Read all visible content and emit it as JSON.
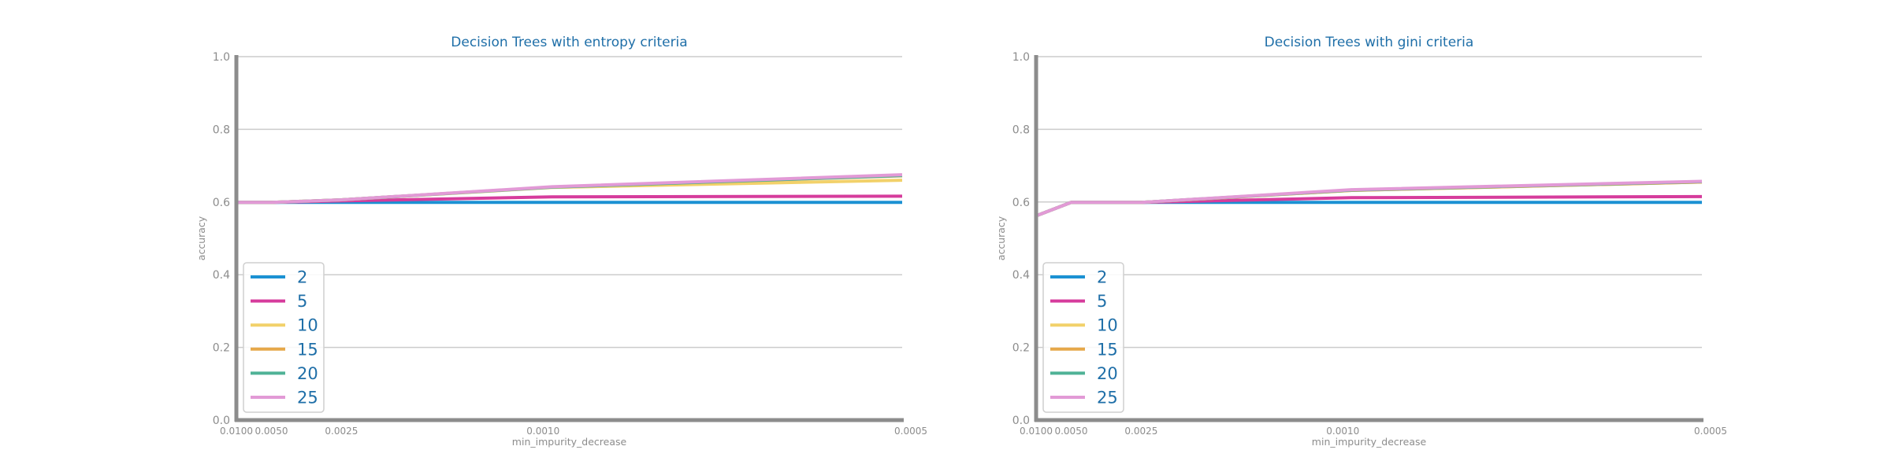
{
  "chart_data": [
    {
      "type": "line",
      "title": "Decision Trees with entropy criteria",
      "xlabel": "min_impurity_decrease",
      "ylabel": "accuracy",
      "x": [
        0.01,
        0.005,
        0.0025,
        0.001,
        0.0005
      ],
      "x_tick_labels": [
        "0.0100",
        "0.0050",
        "0.0025",
        "0.0010",
        "0.0005"
      ],
      "ylim": [
        0.0,
        1.0
      ],
      "y_ticks": [
        0.0,
        0.2,
        0.4,
        0.6,
        0.8,
        1.0
      ],
      "y_tick_labels": [
        "0.0",
        "0.2",
        "0.4",
        "0.6",
        "0.8",
        "1.0"
      ],
      "grid": true,
      "legend_position": "lower-left",
      "series": [
        {
          "name": "2",
          "color": "#1b91d3",
          "values": [
            0.599,
            0.599,
            0.599,
            0.599,
            0.599
          ]
        },
        {
          "name": "5",
          "color": "#d63c9c",
          "values": [
            0.599,
            0.599,
            0.603,
            0.614,
            0.616
          ]
        },
        {
          "name": "10",
          "color": "#f2d16a",
          "values": [
            0.599,
            0.599,
            0.606,
            0.64,
            0.66
          ]
        },
        {
          "name": "15",
          "color": "#e6a84a",
          "values": [
            0.599,
            0.599,
            0.606,
            0.641,
            0.672
          ]
        },
        {
          "name": "20",
          "color": "#4fb296",
          "values": [
            0.599,
            0.599,
            0.606,
            0.641,
            0.673
          ]
        },
        {
          "name": "25",
          "color": "#e29ad6",
          "values": [
            0.599,
            0.599,
            0.606,
            0.642,
            0.675
          ]
        }
      ]
    },
    {
      "type": "line",
      "title": "Decision Trees with gini criteria",
      "xlabel": "min_impurity_decrease",
      "ylabel": "accuracy",
      "x": [
        0.01,
        0.005,
        0.0025,
        0.001,
        0.0005
      ],
      "x_tick_labels": [
        "0.0100",
        "0.0050",
        "0.0025",
        "0.0010",
        "0.0005"
      ],
      "ylim": [
        0.0,
        1.0
      ],
      "y_ticks": [
        0.0,
        0.2,
        0.4,
        0.6,
        0.8,
        1.0
      ],
      "y_tick_labels": [
        "0.0",
        "0.2",
        "0.4",
        "0.6",
        "0.8",
        "1.0"
      ],
      "grid": true,
      "legend_position": "lower-left",
      "series": [
        {
          "name": "2",
          "color": "#1b91d3",
          "values": [
            0.562,
            0.599,
            0.599,
            0.599,
            0.599
          ]
        },
        {
          "name": "5",
          "color": "#d63c9c",
          "values": [
            0.562,
            0.599,
            0.599,
            0.612,
            0.615
          ]
        },
        {
          "name": "10",
          "color": "#f2d16a",
          "values": [
            0.562,
            0.599,
            0.599,
            0.632,
            0.655
          ]
        },
        {
          "name": "15",
          "color": "#e6a84a",
          "values": [
            0.562,
            0.599,
            0.599,
            0.632,
            0.655
          ]
        },
        {
          "name": "20",
          "color": "#4fb296",
          "values": [
            0.562,
            0.599,
            0.599,
            0.633,
            0.656
          ]
        },
        {
          "name": "25",
          "color": "#e29ad6",
          "values": [
            0.562,
            0.599,
            0.599,
            0.634,
            0.657
          ]
        }
      ]
    }
  ]
}
